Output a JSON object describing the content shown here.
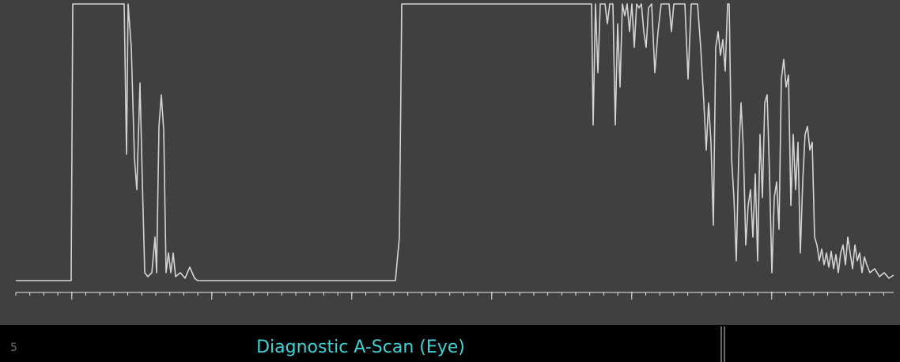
{
  "chart_data": {
    "type": "line",
    "xlim": [
      0,
      1110
    ],
    "ylim": [
      0,
      350
    ],
    "xticks": [
      70.8,
      247.8,
      424.8,
      601.8,
      778.8,
      955.8
    ],
    "minor_xticks": [
      0,
      17.7,
      35.4,
      53.1,
      70.8,
      88.5,
      106.2,
      123.9,
      141.6,
      159.3,
      177,
      194.7,
      212.4,
      230.1,
      247.8,
      265.5,
      283.2,
      300.9,
      318.6,
      336.3,
      354,
      371.7,
      389.4,
      407.1,
      424.8,
      442.5,
      460.2,
      477.9,
      495.6,
      513.3,
      531,
      548.7,
      566.4,
      584.1,
      601.8,
      619.5,
      637.2,
      654.9,
      672.6,
      690.3,
      708,
      725.7,
      743.4,
      761.1,
      778.8,
      796.5,
      814.2,
      831.9,
      849.6,
      867.3,
      885,
      902.7,
      920.4,
      938.1,
      955.8,
      973.5,
      991.2,
      1008.9,
      1026.6,
      1044.3,
      1062,
      1079.7,
      1097.4
    ],
    "x": [
      0,
      70,
      72,
      137,
      140,
      142,
      146,
      150,
      153,
      157,
      160,
      163,
      167,
      172,
      176,
      178,
      181,
      184,
      187,
      190,
      193,
      196,
      199,
      202,
      208,
      214,
      220,
      226,
      230,
      480,
      485,
      488,
      728,
      730,
      733,
      736,
      739,
      742,
      745,
      748,
      751,
      755,
      758,
      761,
      764,
      767,
      770,
      773,
      776,
      779,
      782,
      785,
      788,
      791,
      794,
      797,
      800,
      804,
      808,
      812,
      816,
      826,
      829,
      832,
      840,
      846,
      850,
      854,
      862,
      866,
      870,
      873,
      876,
      879,
      882,
      885,
      888,
      891,
      894,
      897,
      900,
      902,
      905,
      908,
      911,
      914,
      917,
      920,
      923,
      926,
      929,
      932,
      935,
      938,
      941,
      944,
      947,
      950,
      953,
      956,
      959,
      962,
      965,
      968,
      971,
      974,
      977,
      980,
      983,
      986,
      989,
      992,
      995,
      998,
      1001,
      1004,
      1007,
      1010,
      1013,
      1016,
      1019,
      1022,
      1025,
      1028,
      1031,
      1034,
      1037,
      1040,
      1043,
      1046,
      1049,
      1052,
      1055,
      1058,
      1061,
      1064,
      1067,
      1070,
      1073,
      1076,
      1080,
      1086,
      1092,
      1098,
      1104,
      1110
    ],
    "series": [
      {
        "color": "#d4d4d4",
        "values": [
          0,
          0,
          350,
          350,
          160,
          350,
          295,
          155,
          115,
          250,
          125,
          10,
          5,
          10,
          55,
          10,
          195,
          235,
          190,
          10,
          35,
          10,
          35,
          5,
          10,
          3,
          17,
          3,
          0,
          0,
          55,
          350,
          350,
          197,
          350,
          263,
          350,
          350,
          350,
          325,
          350,
          350,
          197,
          325,
          245,
          350,
          335,
          350,
          315,
          350,
          295,
          350,
          345,
          350,
          315,
          295,
          345,
          350,
          263,
          315,
          350,
          350,
          315,
          350,
          350,
          350,
          255,
          350,
          350,
          295,
          225,
          165,
          225,
          175,
          70,
          295,
          315,
          285,
          305,
          265,
          350,
          350,
          155,
          105,
          25,
          155,
          225,
          165,
          45,
          95,
          115,
          55,
          135,
          25,
          185,
          105,
          225,
          235,
          135,
          10,
          105,
          125,
          65,
          255,
          280,
          245,
          260,
          95,
          185,
          115,
          175,
          35,
          125,
          185,
          195,
          165,
          175,
          55,
          45,
          25,
          40,
          20,
          35,
          17,
          37,
          15,
          33,
          10,
          35,
          45,
          20,
          55,
          35,
          15,
          45,
          25,
          35,
          10,
          30,
          20,
          10,
          15,
          5,
          10,
          3,
          7
        ]
      }
    ]
  },
  "status_bar": {
    "page": "5",
    "title": "Diagnostic A-Scan (Eye)"
  }
}
